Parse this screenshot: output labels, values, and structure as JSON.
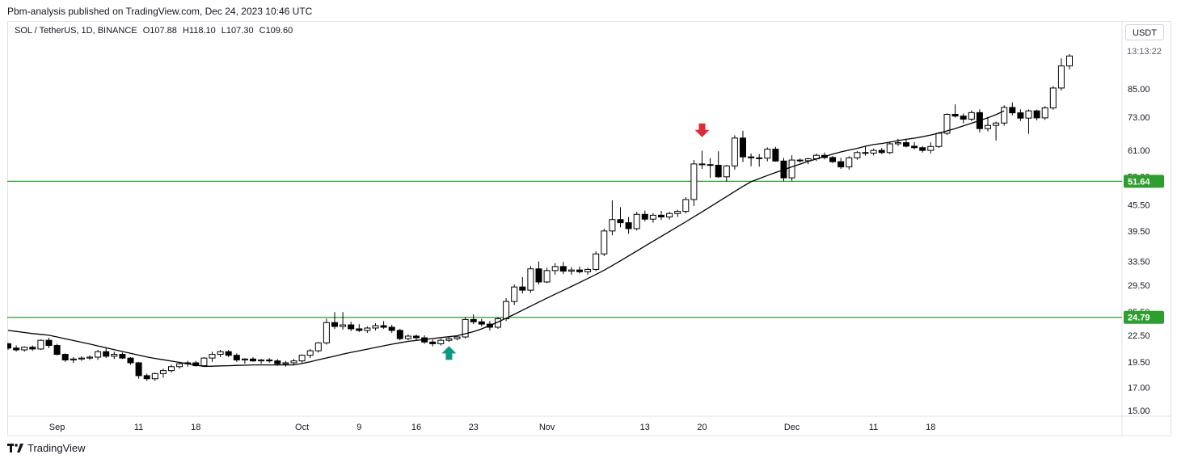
{
  "publisher_line": "Pbm-analysis published on TradingView.com, Dec 24, 2023 10:46 UTC",
  "legend": {
    "symbol": "SOL / TetherUS, 1D, BINANCE",
    "open": "O107.88",
    "high": "H118.10",
    "low": "L107.30",
    "close": "C109.60"
  },
  "currency_button": "USDT",
  "countdown": "13:13:22",
  "footer_brand": "TradingView",
  "colors": {
    "up_body": "#ffffff",
    "down_body": "#000000",
    "wick": "#000000",
    "ma": "#000000",
    "hline": "#2e9e2e",
    "hline_label_bg": "#2e9e2e",
    "arrow_up": "#089981",
    "arrow_down": "#e02b36",
    "grid_border": "#e0e3eb"
  },
  "chart_data": {
    "type": "candlestick",
    "scale": "log",
    "price_axis_labels": [
      "85.00",
      "73.00",
      "61.00",
      "53.00",
      "45.50",
      "39.50",
      "33.50",
      "29.50",
      "25.50",
      "22.50",
      "19.50",
      "17.00",
      "15.00"
    ],
    "price_axis_values": [
      85,
      73,
      61,
      53,
      45.5,
      39.5,
      33.5,
      29.5,
      25.5,
      22.5,
      19.5,
      17,
      15
    ],
    "x_axis_labels": [
      {
        "label": "Sep",
        "index": 6
      },
      {
        "label": "11",
        "index": 16
      },
      {
        "label": "18",
        "index": 23
      },
      {
        "label": "Oct",
        "index": 36
      },
      {
        "label": "9",
        "index": 43
      },
      {
        "label": "16",
        "index": 50
      },
      {
        "label": "23",
        "index": 57
      },
      {
        "label": "Nov",
        "index": 66
      },
      {
        "label": "13",
        "index": 78
      },
      {
        "label": "20",
        "index": 85
      },
      {
        "label": "Dec",
        "index": 96
      },
      {
        "label": "11",
        "index": 106
      },
      {
        "label": "18",
        "index": 113
      }
    ],
    "horizontal_lines": [
      {
        "value": 51.64,
        "label": "51.64"
      },
      {
        "value": 24.79,
        "label": "24.79"
      }
    ],
    "arrows": [
      {
        "direction": "up",
        "index": 54,
        "below_price": 21.6
      },
      {
        "direction": "down",
        "index": 85,
        "above_price": 65.5
      }
    ],
    "candles": [
      [
        21.5,
        21.6,
        20.8,
        21.0
      ],
      [
        21.0,
        21.3,
        20.6,
        20.8
      ],
      [
        20.8,
        21.2,
        20.6,
        21.1
      ],
      [
        21.1,
        21.3,
        20.7,
        20.9
      ],
      [
        20.9,
        22.0,
        20.8,
        21.9
      ],
      [
        21.9,
        22.2,
        21.0,
        21.3
      ],
      [
        21.3,
        21.5,
        20.2,
        20.3
      ],
      [
        20.3,
        20.4,
        19.5,
        19.7
      ],
      [
        19.7,
        20.0,
        19.4,
        19.8
      ],
      [
        19.8,
        20.1,
        19.6,
        19.9
      ],
      [
        19.9,
        20.2,
        19.7,
        20.0
      ],
      [
        20.0,
        20.8,
        19.7,
        20.6
      ],
      [
        20.6,
        21.0,
        19.9,
        20.1
      ],
      [
        20.1,
        20.6,
        19.8,
        20.3
      ],
      [
        20.3,
        20.5,
        19.8,
        19.9
      ],
      [
        19.9,
        20.0,
        19.2,
        19.4
      ],
      [
        19.4,
        19.5,
        17.8,
        18.1
      ],
      [
        18.1,
        18.3,
        17.6,
        17.8
      ],
      [
        17.8,
        18.4,
        17.6,
        18.3
      ],
      [
        18.3,
        18.8,
        17.9,
        18.6
      ],
      [
        18.6,
        19.2,
        18.4,
        19.0
      ],
      [
        19.0,
        19.5,
        18.8,
        19.3
      ],
      [
        19.3,
        19.6,
        19.0,
        19.4
      ],
      [
        19.4,
        19.6,
        19.0,
        19.1
      ],
      [
        19.1,
        20.0,
        19.0,
        19.9
      ],
      [
        19.9,
        20.6,
        19.5,
        20.3
      ],
      [
        20.3,
        20.8,
        20.0,
        20.6
      ],
      [
        20.6,
        20.8,
        20.0,
        20.2
      ],
      [
        20.2,
        20.4,
        19.5,
        19.7
      ],
      [
        19.7,
        19.9,
        19.3,
        19.8
      ],
      [
        19.8,
        20.0,
        19.5,
        19.6
      ],
      [
        19.6,
        19.8,
        19.3,
        19.7
      ],
      [
        19.7,
        19.9,
        19.4,
        19.6
      ],
      [
        19.6,
        19.8,
        19.1,
        19.3
      ],
      [
        19.3,
        19.6,
        19.0,
        19.4
      ],
      [
        19.4,
        19.8,
        19.2,
        19.6
      ],
      [
        19.6,
        20.3,
        19.4,
        20.2
      ],
      [
        20.2,
        20.9,
        19.9,
        20.7
      ],
      [
        20.7,
        21.7,
        20.5,
        21.6
      ],
      [
        21.6,
        24.6,
        21.4,
        24.1
      ],
      [
        24.1,
        25.5,
        23.3,
        23.6
      ],
      [
        23.6,
        25.5,
        23.2,
        23.8
      ],
      [
        23.8,
        24.2,
        23.0,
        23.3
      ],
      [
        23.3,
        23.9,
        22.9,
        23.1
      ],
      [
        23.1,
        23.6,
        22.8,
        23.4
      ],
      [
        23.4,
        24.0,
        23.1,
        23.7
      ],
      [
        23.7,
        24.3,
        23.3,
        23.5
      ],
      [
        23.5,
        23.8,
        22.8,
        23.1
      ],
      [
        23.1,
        23.3,
        21.9,
        22.1
      ],
      [
        22.1,
        22.6,
        21.9,
        22.4
      ],
      [
        22.4,
        22.6,
        21.9,
        22.2
      ],
      [
        22.2,
        22.5,
        21.5,
        21.7
      ],
      [
        21.7,
        22.0,
        21.2,
        21.5
      ],
      [
        21.5,
        22.1,
        21.3,
        21.9
      ],
      [
        21.9,
        22.3,
        21.7,
        22.1
      ],
      [
        22.1,
        22.5,
        21.9,
        22.3
      ],
      [
        22.3,
        24.8,
        22.1,
        24.5
      ],
      [
        24.5,
        25.2,
        23.9,
        24.2
      ],
      [
        24.2,
        24.6,
        23.6,
        23.9
      ],
      [
        23.9,
        24.3,
        23.1,
        23.5
      ],
      [
        23.5,
        24.8,
        23.3,
        24.6
      ],
      [
        24.6,
        27.5,
        24.3,
        27.0
      ],
      [
        27.0,
        29.6,
        26.5,
        29.2
      ],
      [
        29.2,
        30.8,
        28.2,
        28.7
      ],
      [
        28.7,
        32.7,
        28.3,
        32.2
      ],
      [
        32.2,
        33.5,
        29.6,
        30.0
      ],
      [
        30.0,
        32.4,
        29.8,
        31.9
      ],
      [
        31.9,
        33.2,
        31.2,
        32.6
      ],
      [
        32.6,
        33.4,
        31.3,
        31.8
      ],
      [
        31.8,
        32.5,
        31.2,
        32.0
      ],
      [
        32.0,
        32.6,
        31.4,
        31.7
      ],
      [
        31.7,
        32.4,
        31.2,
        32.1
      ],
      [
        32.1,
        35.4,
        31.8,
        34.9
      ],
      [
        34.9,
        40.0,
        34.5,
        39.5
      ],
      [
        39.5,
        46.6,
        38.6,
        42.0
      ],
      [
        42.0,
        44.9,
        40.3,
        41.3
      ],
      [
        41.3,
        42.6,
        38.9,
        40.0
      ],
      [
        40.0,
        43.8,
        39.6,
        43.2
      ],
      [
        43.2,
        44.1,
        41.6,
        42.1
      ],
      [
        42.1,
        43.5,
        41.3,
        43.0
      ],
      [
        43.0,
        44.0,
        41.9,
        42.6
      ],
      [
        42.6,
        43.8,
        42.0,
        43.4
      ],
      [
        43.4,
        44.3,
        42.6,
        43.9
      ],
      [
        43.9,
        47.4,
        43.4,
        46.8
      ],
      [
        46.8,
        57.9,
        45.2,
        56.7
      ],
      [
        56.7,
        60.9,
        55.2,
        56.5
      ],
      [
        56.5,
        58.5,
        52.6,
        56.3
      ],
      [
        56.3,
        60.7,
        52.6,
        52.9
      ],
      [
        52.9,
        56.4,
        51.5,
        56.1
      ],
      [
        56.1,
        66.2,
        55.0,
        65.2
      ],
      [
        65.2,
        67.8,
        57.3,
        58.9
      ],
      [
        58.9,
        60.0,
        56.0,
        58.6
      ],
      [
        58.6,
        59.8,
        55.9,
        58.5
      ],
      [
        58.5,
        62.0,
        57.5,
        61.4
      ],
      [
        61.4,
        62.2,
        57.4,
        57.6
      ],
      [
        57.6,
        58.6,
        51.7,
        52.6
      ],
      [
        52.6,
        59.4,
        51.8,
        57.9
      ],
      [
        57.9,
        58.4,
        57.1,
        57.7
      ],
      [
        57.7,
        58.6,
        56.6,
        58.3
      ],
      [
        58.3,
        60.0,
        57.6,
        59.4
      ],
      [
        59.4,
        60.3,
        58.1,
        58.7
      ],
      [
        58.7,
        59.2,
        57.0,
        57.4
      ],
      [
        57.4,
        58.6,
        55.2,
        55.8
      ],
      [
        55.8,
        59.1,
        55.0,
        58.6
      ],
      [
        58.6,
        60.8,
        58.0,
        60.3
      ],
      [
        60.3,
        62.3,
        59.3,
        60.1
      ],
      [
        60.1,
        61.6,
        59.4,
        61.0
      ],
      [
        61.0,
        61.8,
        59.8,
        60.3
      ],
      [
        60.3,
        63.8,
        59.8,
        63.2
      ],
      [
        63.2,
        64.9,
        62.5,
        63.6
      ],
      [
        63.6,
        64.7,
        62.0,
        62.4
      ],
      [
        62.4,
        63.8,
        61.3,
        61.9
      ],
      [
        61.9,
        62.4,
        60.3,
        61.0
      ],
      [
        61.0,
        63.7,
        60.0,
        62.3
      ],
      [
        62.3,
        67.4,
        61.8,
        66.9
      ],
      [
        66.9,
        74.5,
        66.3,
        74.1
      ],
      [
        74.1,
        78.2,
        72.8,
        73.4
      ],
      [
        73.4,
        74.4,
        70.6,
        72.2
      ],
      [
        72.2,
        75.7,
        71.5,
        74.8
      ],
      [
        74.8,
        76.1,
        67.2,
        68.6
      ],
      [
        68.6,
        73.1,
        67.6,
        69.8
      ],
      [
        69.8,
        71.2,
        64.3,
        70.7
      ],
      [
        70.7,
        77.8,
        69.7,
        76.9
      ],
      [
        76.9,
        79.0,
        73.7,
        74.7
      ],
      [
        74.7,
        76.1,
        71.5,
        72.6
      ],
      [
        72.6,
        76.1,
        66.7,
        75.5
      ],
      [
        75.5,
        76.0,
        71.7,
        72.7
      ],
      [
        72.7,
        77.5,
        71.9,
        76.7
      ],
      [
        76.7,
        86.2,
        75.9,
        85.4
      ],
      [
        85.4,
        100.2,
        84.2,
        96.2
      ],
      [
        96.2,
        102.5,
        94.5,
        101.5
      ]
    ],
    "ma_values": [
      23.1,
      22.97,
      22.84,
      22.71,
      22.61,
      22.51,
      22.3,
      22.09,
      21.88,
      21.67,
      21.46,
      21.25,
      21.04,
      20.83,
      20.62,
      20.42,
      20.22,
      20.02,
      19.86,
      19.72,
      19.58,
      19.44,
      19.3,
      19.16,
      19.02,
      19.05,
      19.08,
      19.1,
      19.13,
      19.15,
      19.18,
      19.18,
      19.18,
      19.18,
      19.18,
      19.18,
      19.32,
      19.51,
      19.71,
      19.91,
      20.11,
      20.32,
      20.52,
      20.7,
      20.88,
      21.07,
      21.26,
      21.44,
      21.61,
      21.77,
      21.89,
      22.0,
      22.11,
      22.22,
      22.33,
      22.45,
      22.69,
      22.94,
      23.3,
      23.71,
      24.17,
      24.67,
      25.2,
      25.76,
      26.33,
      26.91,
      27.5,
      28.09,
      28.68,
      29.28,
      29.91,
      30.56,
      31.24,
      31.97,
      32.77,
      33.63,
      34.53,
      35.45,
      36.4,
      37.37,
      38.36,
      39.37,
      40.42,
      41.5,
      42.63,
      43.79,
      45.0,
      46.25,
      47.55,
      48.89,
      50.22,
      51.51,
      52.39,
      53.27,
      54.14,
      54.97,
      55.81,
      56.64,
      57.46,
      58.26,
      59.03,
      59.79,
      60.5,
      61.09,
      61.68,
      62.37,
      62.94,
      63.31,
      63.77,
      64.32,
      64.76,
      65.16,
      65.67,
      66.27,
      66.97,
      67.75,
      68.64,
      69.62,
      70.63,
      71.62,
      72.72,
      73.98,
      75.5
    ]
  }
}
